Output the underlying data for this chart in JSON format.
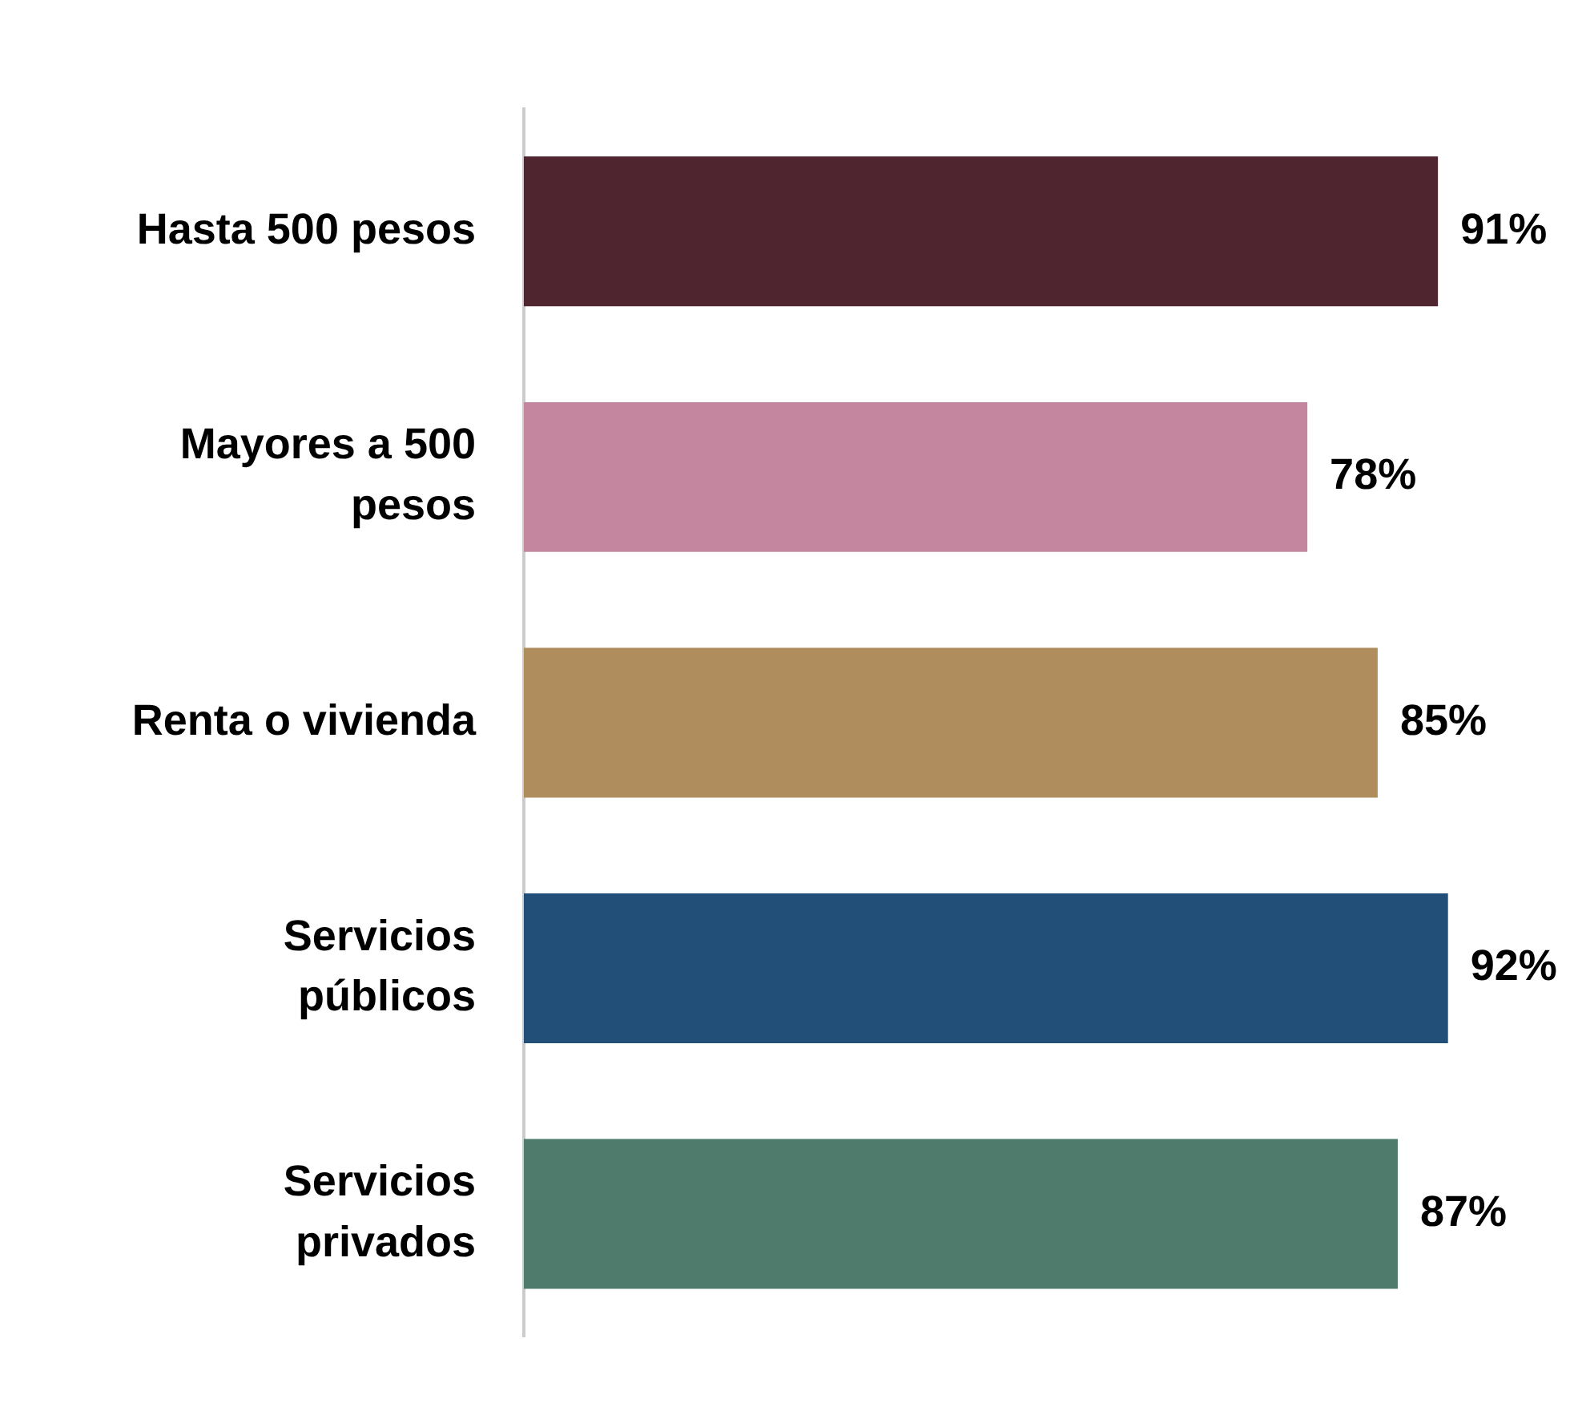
{
  "chart_data": {
    "type": "bar",
    "orientation": "horizontal",
    "categories": [
      "Hasta 500 pesos",
      "Mayores a 500\npesos",
      "Renta o vivienda",
      "Servicios\npúblicos",
      "Servicios\nprivados"
    ],
    "values": [
      91,
      78,
      85,
      92,
      87
    ],
    "colors": [
      "#4f2530",
      "#c4869e",
      "#b08d5c",
      "#214f77",
      "#4f7b6c"
    ],
    "value_labels": [
      "91%",
      "78%",
      "85%",
      "92%",
      "87%"
    ],
    "tick_labels": "y",
    "legend": false
  }
}
